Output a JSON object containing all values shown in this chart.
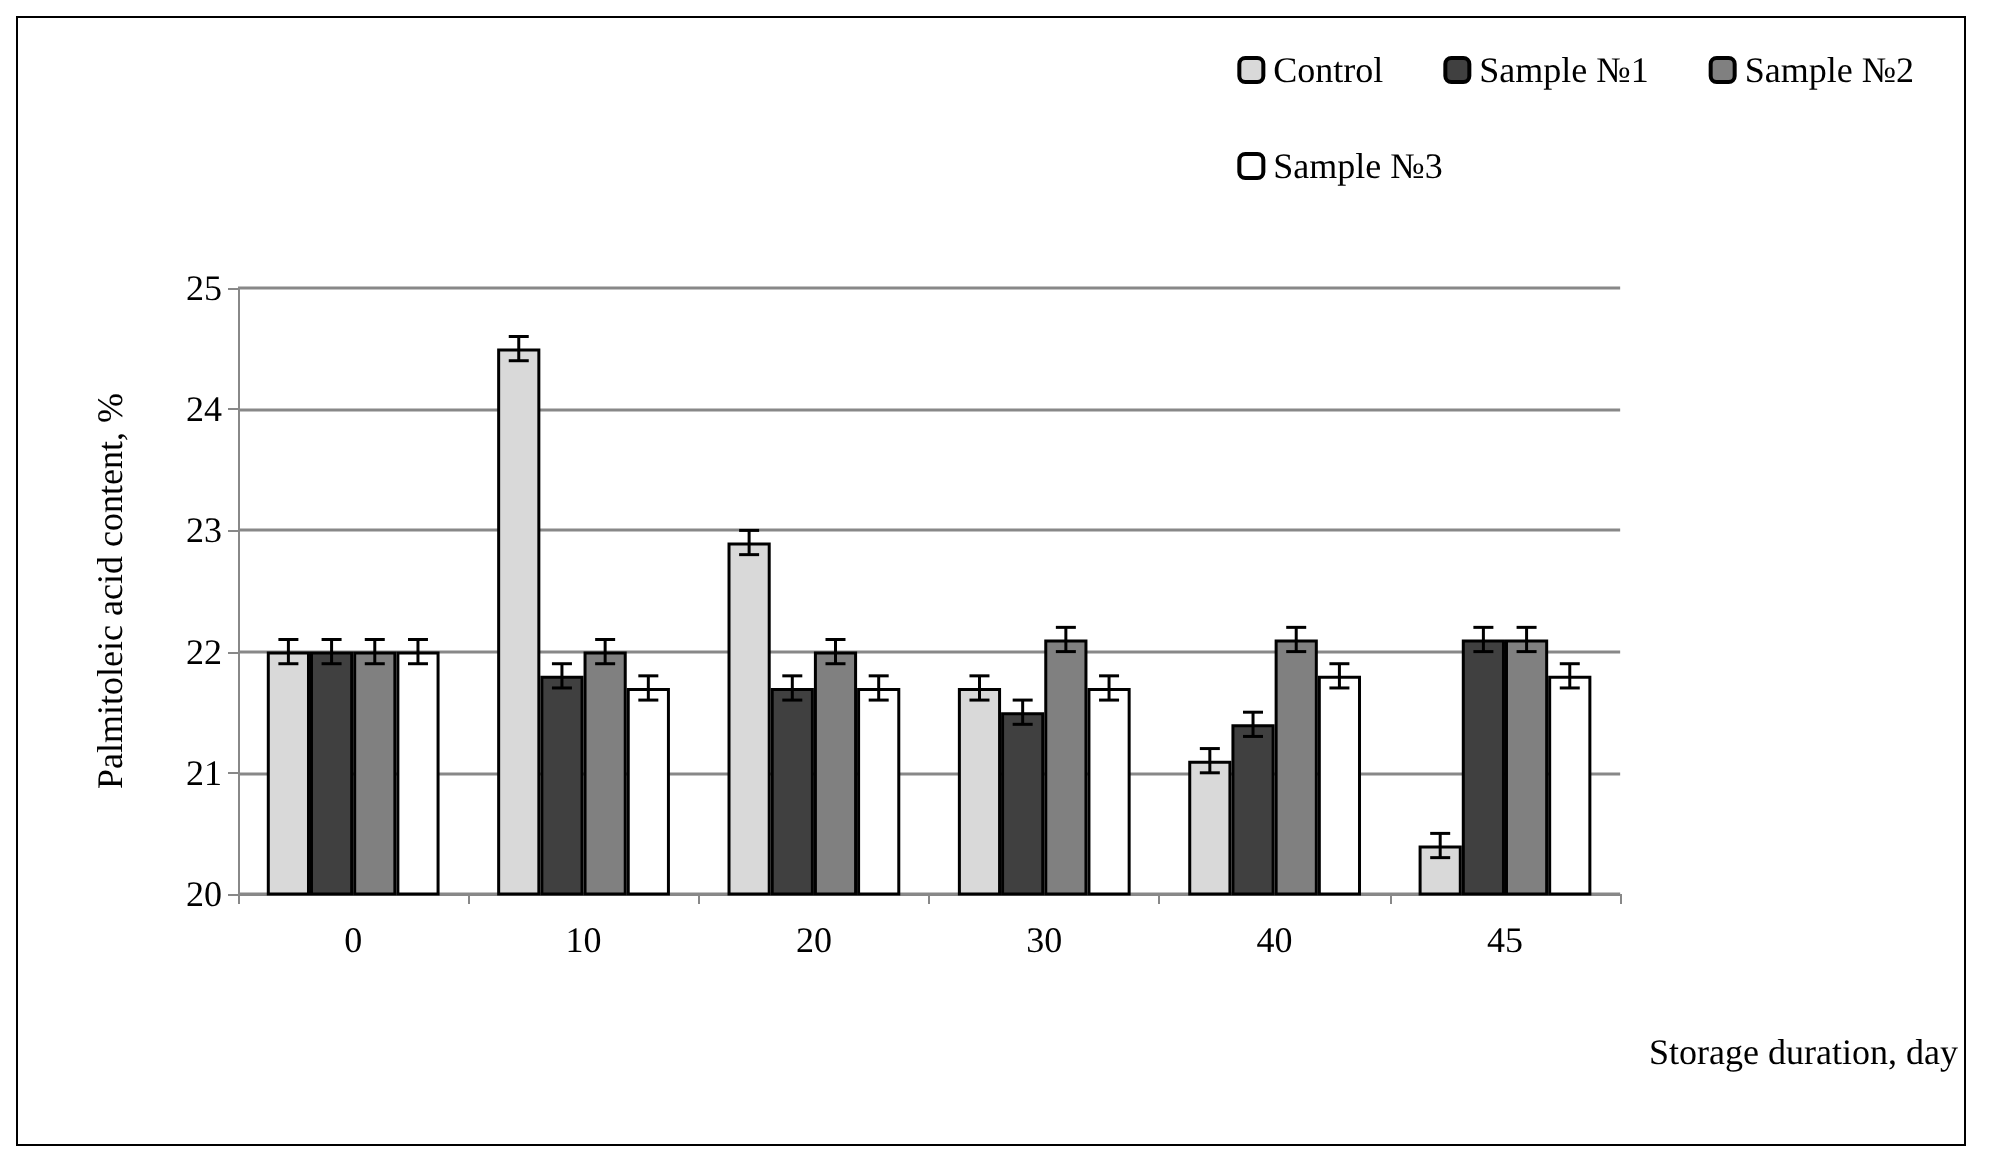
{
  "chart_data": {
    "type": "bar",
    "xlabel": "Storage duration, day",
    "ylabel": "Palmitoleic acid content, %",
    "categories": [
      "0",
      "10",
      "20",
      "30",
      "40",
      "45"
    ],
    "series": [
      {
        "name": "Control",
        "color": "#d9d9d9",
        "values": [
          22.0,
          24.5,
          22.9,
          21.7,
          21.1,
          20.4
        ],
        "errors": [
          0.1,
          0.1,
          0.1,
          0.1,
          0.1,
          0.1
        ]
      },
      {
        "name": "Sample №1",
        "color": "#404040",
        "values": [
          22.0,
          21.8,
          21.7,
          21.5,
          21.4,
          22.1
        ],
        "errors": [
          0.1,
          0.1,
          0.1,
          0.1,
          0.1,
          0.1
        ]
      },
      {
        "name": "Sample №2",
        "color": "#808080",
        "values": [
          22.0,
          22.0,
          22.0,
          22.1,
          22.1,
          22.1
        ],
        "errors": [
          0.1,
          0.1,
          0.1,
          0.1,
          0.1,
          0.1
        ]
      },
      {
        "name": "Sample №3",
        "color": "#ffffff",
        "values": [
          22.0,
          21.7,
          21.7,
          21.7,
          21.8,
          21.8
        ],
        "errors": [
          0.1,
          0.1,
          0.1,
          0.1,
          0.1,
          0.1
        ]
      }
    ],
    "ylim": [
      20,
      25
    ],
    "yticks": [
      20,
      21,
      22,
      23,
      24,
      25
    ],
    "grid": "y",
    "legend": "top right"
  }
}
